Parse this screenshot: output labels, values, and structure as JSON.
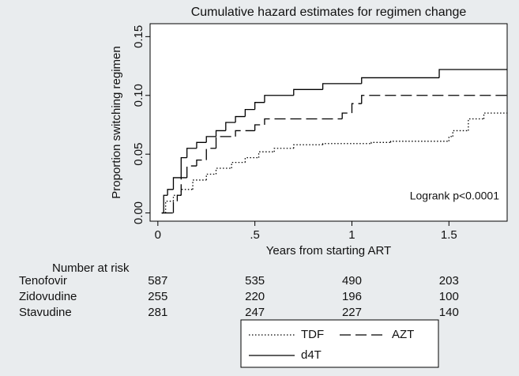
{
  "chart_data": {
    "type": "step",
    "title": "Cumulative hazard estimates for regimen change",
    "x_label": "Years from starting ART",
    "y_label": "Proportion switching regimen",
    "annotation": "Logrank p<0.0001",
    "xlim": [
      -0.04,
      1.8
    ],
    "ylim": [
      -0.007,
      0.161
    ],
    "xticks": [
      0,
      {
        "value": 0.5,
        "label": ".5"
      },
      1,
      1.5
    ],
    "yticks": [
      {
        "value": 0,
        "label": "0.00"
      },
      {
        "value": 0.05,
        "label": "0.05"
      },
      {
        "value": 0.1,
        "label": "0.10"
      },
      {
        "value": 0.15,
        "label": "0.15"
      }
    ],
    "series": [
      {
        "name": "TDF",
        "color": "#000000",
        "line_style": "dotted",
        "x": [
          0.02,
          0.04,
          0.08,
          0.12,
          0.18,
          0.25,
          0.3,
          0.38,
          0.45,
          0.52,
          0.6,
          0.7,
          0.85,
          1.1,
          1.2,
          1.5,
          1.52,
          1.6,
          1.68,
          1.8
        ],
        "values": [
          0,
          0.01,
          0.015,
          0.02,
          0.028,
          0.033,
          0.038,
          0.043,
          0.047,
          0.052,
          0.055,
          0.058,
          0.059,
          0.06,
          0.061,
          0.065,
          0.07,
          0.08,
          0.085,
          0.085
        ]
      },
      {
        "name": "AZT",
        "color": "#000000",
        "line_style": "dashed",
        "x": [
          0.02,
          0.08,
          0.1,
          0.12,
          0.15,
          0.2,
          0.25,
          0.3,
          0.4,
          0.5,
          0.55,
          0.95,
          1.0,
          1.05,
          1.8
        ],
        "values": [
          0,
          0.01,
          0.015,
          0.03,
          0.04,
          0.045,
          0.055,
          0.065,
          0.07,
          0.075,
          0.08,
          0.085,
          0.093,
          0.1,
          0.1
        ]
      },
      {
        "name": "d4T",
        "color": "#000000",
        "line_style": "solid",
        "x": [
          0.02,
          0.03,
          0.05,
          0.08,
          0.12,
          0.15,
          0.2,
          0.25,
          0.3,
          0.35,
          0.4,
          0.45,
          0.5,
          0.55,
          0.7,
          0.85,
          1.05,
          1.45,
          1.8
        ],
        "values": [
          0,
          0.015,
          0.02,
          0.03,
          0.047,
          0.055,
          0.06,
          0.065,
          0.07,
          0.077,
          0.082,
          0.088,
          0.094,
          0.1,
          0.105,
          0.11,
          0.115,
          0.122,
          0.122
        ]
      }
    ],
    "risk_table": {
      "title": "Number at risk",
      "rows": [
        {
          "label": "Tenofovir",
          "values": [
            587,
            535,
            490,
            203
          ]
        },
        {
          "label": "Zidovudine",
          "values": [
            255,
            220,
            196,
            100
          ]
        },
        {
          "label": "Stavudine",
          "values": [
            281,
            247,
            227,
            140
          ]
        }
      ]
    }
  }
}
